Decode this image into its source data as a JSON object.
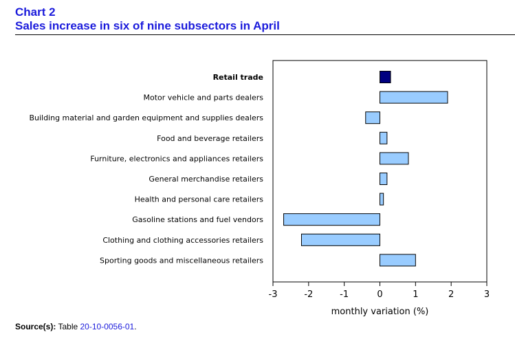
{
  "header": {
    "chart_label": "Chart 2",
    "title": "Sales increase in six of nine subsectors in April"
  },
  "source": {
    "label": "Source(s):",
    "prefix": "Table",
    "link_text": "20-10-0056-01",
    "suffix": "."
  },
  "colors": {
    "highlight_bar": "#000080",
    "bar": "#99ccff",
    "title": "#1a1adb"
  },
  "chart_data": {
    "type": "bar",
    "orientation": "horizontal",
    "categories": [
      "Retail trade",
      "Motor vehicle and parts dealers",
      "Building material and garden equipment and supplies dealers",
      "Food and beverage retailers",
      "Furniture, electronics and appliances retailers",
      "General merchandise retailers",
      "Health and personal care retailers",
      "Gasoline stations and fuel vendors",
      "Clothing and clothing accessories retailers",
      "Sporting goods and miscellaneous retailers"
    ],
    "values": [
      0.3,
      1.9,
      -0.4,
      0.2,
      0.8,
      0.2,
      0.1,
      -2.7,
      -2.2,
      1.0
    ],
    "highlight": [
      "Retail trade"
    ],
    "xlabel": "monthly variation (%)",
    "ylabel": "",
    "xlim": [
      -3,
      3
    ],
    "xticks": [
      -3,
      -2,
      -1,
      0,
      1,
      2,
      3
    ],
    "grid": false,
    "legend": "none"
  }
}
